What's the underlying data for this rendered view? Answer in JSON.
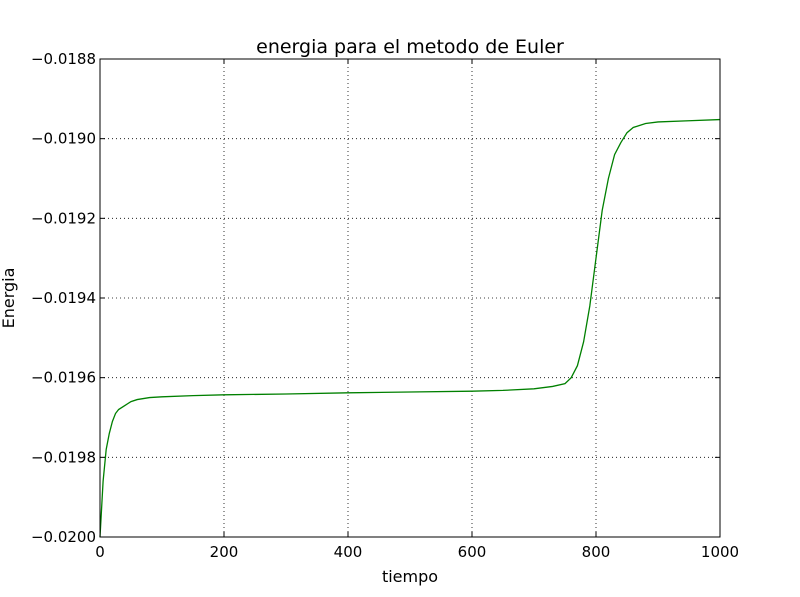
{
  "chart_data": {
    "type": "line",
    "title": "energia para el metodo de Euler",
    "xlabel": "tiempo",
    "ylabel": "Energia",
    "xlim": [
      0,
      1000
    ],
    "ylim": [
      -0.02,
      -0.0188
    ],
    "x_ticks": [
      0,
      200,
      400,
      600,
      800,
      1000
    ],
    "x_tick_labels": [
      "0",
      "200",
      "400",
      "600",
      "800",
      "1000"
    ],
    "y_ticks": [
      -0.02,
      -0.0198,
      -0.0196,
      -0.0194,
      -0.0192,
      -0.019,
      -0.0188
    ],
    "y_tick_labels": [
      "−0.0200",
      "−0.0198",
      "−0.0196",
      "−0.0194",
      "−0.0192",
      "−0.0190",
      "−0.0188"
    ],
    "grid": true,
    "line_color": "#008000",
    "series": [
      {
        "x": [
          0,
          5,
          10,
          15,
          20,
          25,
          30,
          40,
          50,
          60,
          80,
          100,
          150,
          200,
          300,
          400,
          500,
          600,
          650,
          700,
          730,
          750,
          760,
          770,
          780,
          790,
          795,
          800,
          805,
          810,
          820,
          830,
          840,
          850,
          860,
          880,
          900,
          950,
          1000
        ],
        "y": [
          -0.02,
          -0.01986,
          -0.01978,
          -0.01974,
          -0.01971,
          -0.01969,
          -0.01968,
          -0.01967,
          -0.01966,
          -0.019655,
          -0.01965,
          -0.019648,
          -0.019645,
          -0.019643,
          -0.019641,
          -0.019638,
          -0.019636,
          -0.019634,
          -0.019632,
          -0.019628,
          -0.019622,
          -0.019615,
          -0.0196,
          -0.01957,
          -0.01951,
          -0.01942,
          -0.01936,
          -0.0193,
          -0.01924,
          -0.01918,
          -0.0191,
          -0.01904,
          -0.01901,
          -0.018985,
          -0.018972,
          -0.018962,
          -0.018958,
          -0.018955,
          -0.018952
        ]
      }
    ]
  }
}
